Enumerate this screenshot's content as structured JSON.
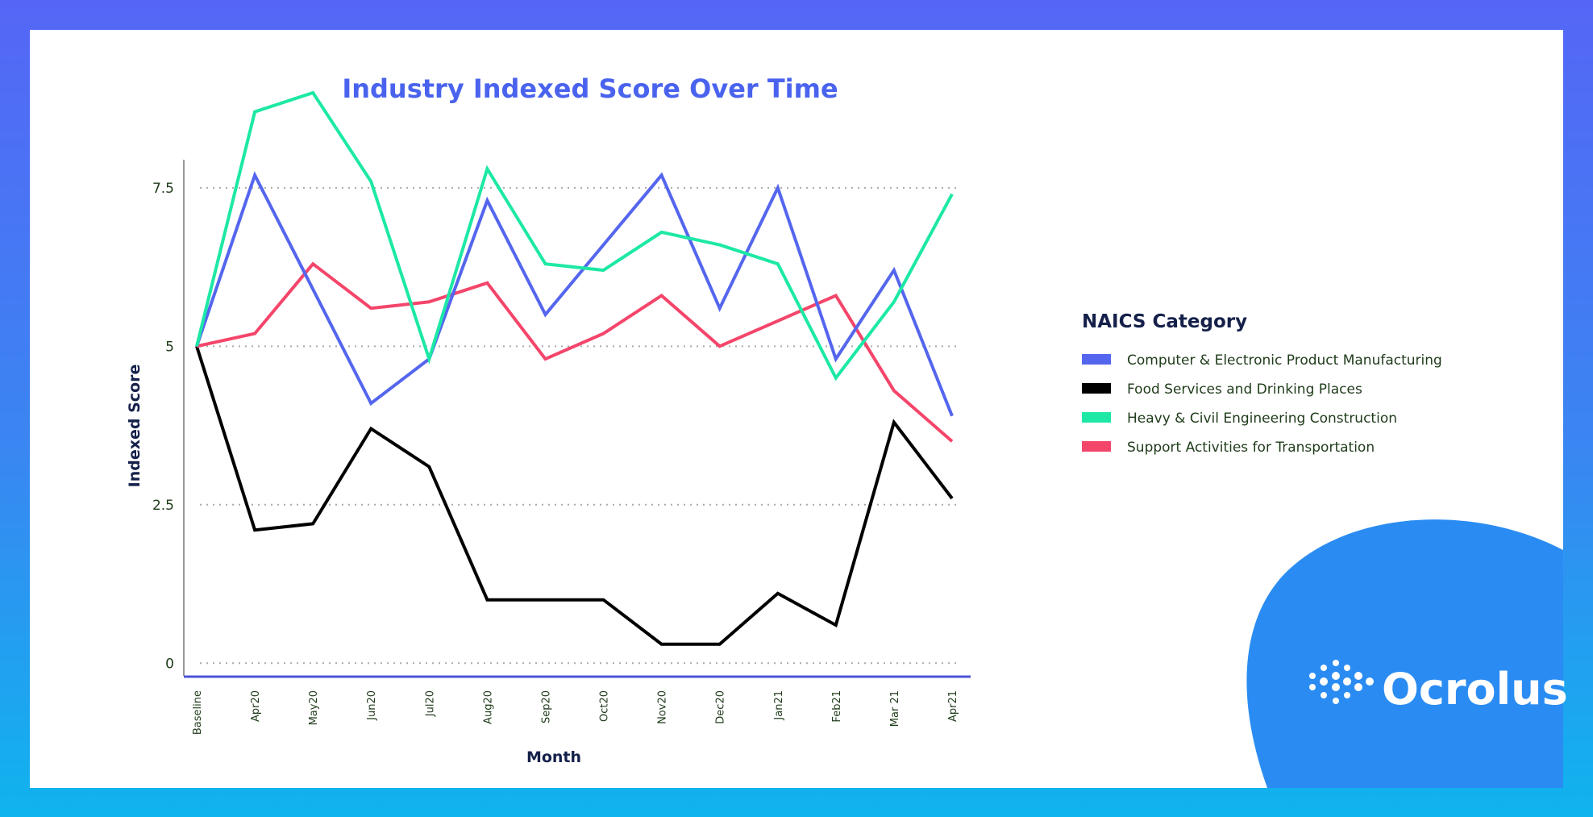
{
  "brand": {
    "name": "Ocrolus"
  },
  "colors": {
    "title": "#4a63ee",
    "axis": "#4a55d8",
    "grid": "#aaaaaa",
    "logo_circle": "#2a8cf2"
  },
  "chart_data": {
    "type": "line",
    "title": "Industry Indexed Score Over Time",
    "xlabel": "Month",
    "ylabel": "Indexed Score",
    "categories": [
      "Baseline",
      "Apr20",
      "May20",
      "Jun20",
      "Jul20",
      "Aug20",
      "Sep20",
      "Oct20",
      "Nov20",
      "Dec20",
      "Jan21",
      "Feb21",
      "Mar 21",
      "Apr21"
    ],
    "yticks": [
      0,
      2.5,
      5,
      7.5
    ],
    "ytick_labels": [
      "0",
      "2.5",
      "5",
      "7.5"
    ],
    "ylim": [
      -0.2,
      8.3
    ],
    "grid": "horizontal dotted",
    "legend": {
      "title": "NAICS Category",
      "position": "right"
    },
    "series": [
      {
        "name": "Computer & Electronic Product Manufacturing",
        "color": "#5566ee",
        "values": [
          5.0,
          7.7,
          5.9,
          4.1,
          4.8,
          7.3,
          5.5,
          6.6,
          7.7,
          5.6,
          7.5,
          4.8,
          6.2,
          3.9
        ]
      },
      {
        "name": "Food Services and Drinking Places",
        "color": "#000000",
        "values": [
          5.0,
          2.1,
          2.2,
          3.7,
          3.1,
          1.0,
          1.0,
          1.0,
          0.3,
          0.3,
          1.1,
          0.6,
          3.8,
          2.6
        ]
      },
      {
        "name": "Heavy & Civil Engineering Construction",
        "color": "#1de8a6",
        "values": [
          5.0,
          8.7,
          9.0,
          7.6,
          4.8,
          7.8,
          6.3,
          6.2,
          6.8,
          6.6,
          6.3,
          4.5,
          5.7,
          7.4
        ]
      },
      {
        "name": "Support Activities for Transportation",
        "color": "#f4456a",
        "values": [
          5.0,
          5.2,
          6.3,
          5.6,
          5.7,
          6.0,
          4.8,
          5.2,
          5.8,
          5.0,
          5.4,
          5.8,
          4.3,
          3.5
        ]
      }
    ]
  }
}
